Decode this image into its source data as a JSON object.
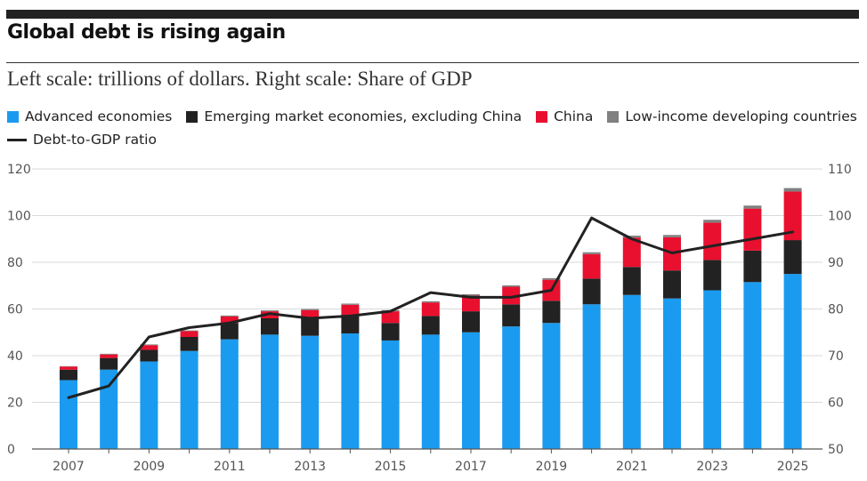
{
  "header": {
    "title": "Global debt is rising again",
    "subtitle": "Left scale: trillions of dollars. Right scale: Share of GDP"
  },
  "legend": {
    "advanced": "Advanced economies",
    "emerging": "Emerging market economies, excluding China",
    "china": "China",
    "lowincome": "Low-income developing countries",
    "ratio": "Debt-to-GDP ratio"
  },
  "colors": {
    "advanced": "#1a9bf0",
    "emerging": "#222222",
    "china": "#e8102e",
    "lowincome": "#808080",
    "ratio": "#222222",
    "grid": "#d9d9d9",
    "axis_text": "#555555"
  },
  "chart_data": {
    "type": "bar",
    "stacked": true,
    "title": "Global debt is rising again",
    "subtitle": "Left scale: trillions of dollars. Right scale: Share of GDP",
    "x": [
      2007,
      2008,
      2009,
      2010,
      2011,
      2012,
      2013,
      2014,
      2015,
      2016,
      2017,
      2018,
      2019,
      2020,
      2021,
      2022,
      2023,
      2024,
      2025
    ],
    "x_tick_labels": [
      "2007",
      "2009",
      "2011",
      "2013",
      "2015",
      "2017",
      "2019",
      "2021",
      "2023",
      "2025"
    ],
    "series": [
      {
        "name": "Advanced economies",
        "key": "advanced",
        "values": [
          29.5,
          34,
          37.5,
          42,
          47,
          49,
          48.5,
          49.5,
          46.5,
          49,
          50,
          52.5,
          54,
          62,
          66,
          64.5,
          68,
          71.5,
          75
        ]
      },
      {
        "name": "Emerging market economies, excluding China",
        "key": "emerging",
        "values": [
          4.5,
          5,
          5,
          6,
          7,
          7,
          7.5,
          8,
          7.5,
          8,
          9,
          9.5,
          9.5,
          11,
          12,
          12,
          13,
          13.5,
          14.5
        ]
      },
      {
        "name": "China",
        "key": "china",
        "values": [
          1.3,
          1.5,
          2,
          2.5,
          2.8,
          3,
          3.5,
          4.3,
          5,
          5.8,
          6.7,
          7.5,
          9,
          10.5,
          12.6,
          14.2,
          16,
          18,
          20.8
        ]
      },
      {
        "name": "Low-income developing countries",
        "key": "lowincome",
        "values": [
          0.2,
          0.3,
          0.3,
          0.3,
          0.4,
          0.4,
          0.5,
          0.5,
          0.5,
          0.5,
          0.6,
          0.6,
          0.7,
          0.8,
          0.8,
          1,
          1.2,
          1.3,
          1.5
        ]
      }
    ],
    "line": {
      "name": "Debt-to-GDP ratio",
      "axis": "right",
      "values": [
        61,
        63.5,
        74,
        76,
        77,
        79,
        78,
        78.5,
        79.5,
        83.5,
        82.5,
        82.5,
        84,
        99.5,
        95,
        92,
        93.5,
        95,
        96.5
      ]
    },
    "y_left": {
      "label": "trillions of dollars",
      "ylim": [
        0,
        120
      ],
      "ticks": [
        0,
        20,
        40,
        60,
        80,
        100,
        120
      ]
    },
    "y_right": {
      "label": "Share of GDP",
      "ylim": [
        50,
        110
      ],
      "ticks": [
        50,
        60,
        70,
        80,
        90,
        100,
        110
      ]
    },
    "grid": true,
    "legend_position": "top"
  }
}
